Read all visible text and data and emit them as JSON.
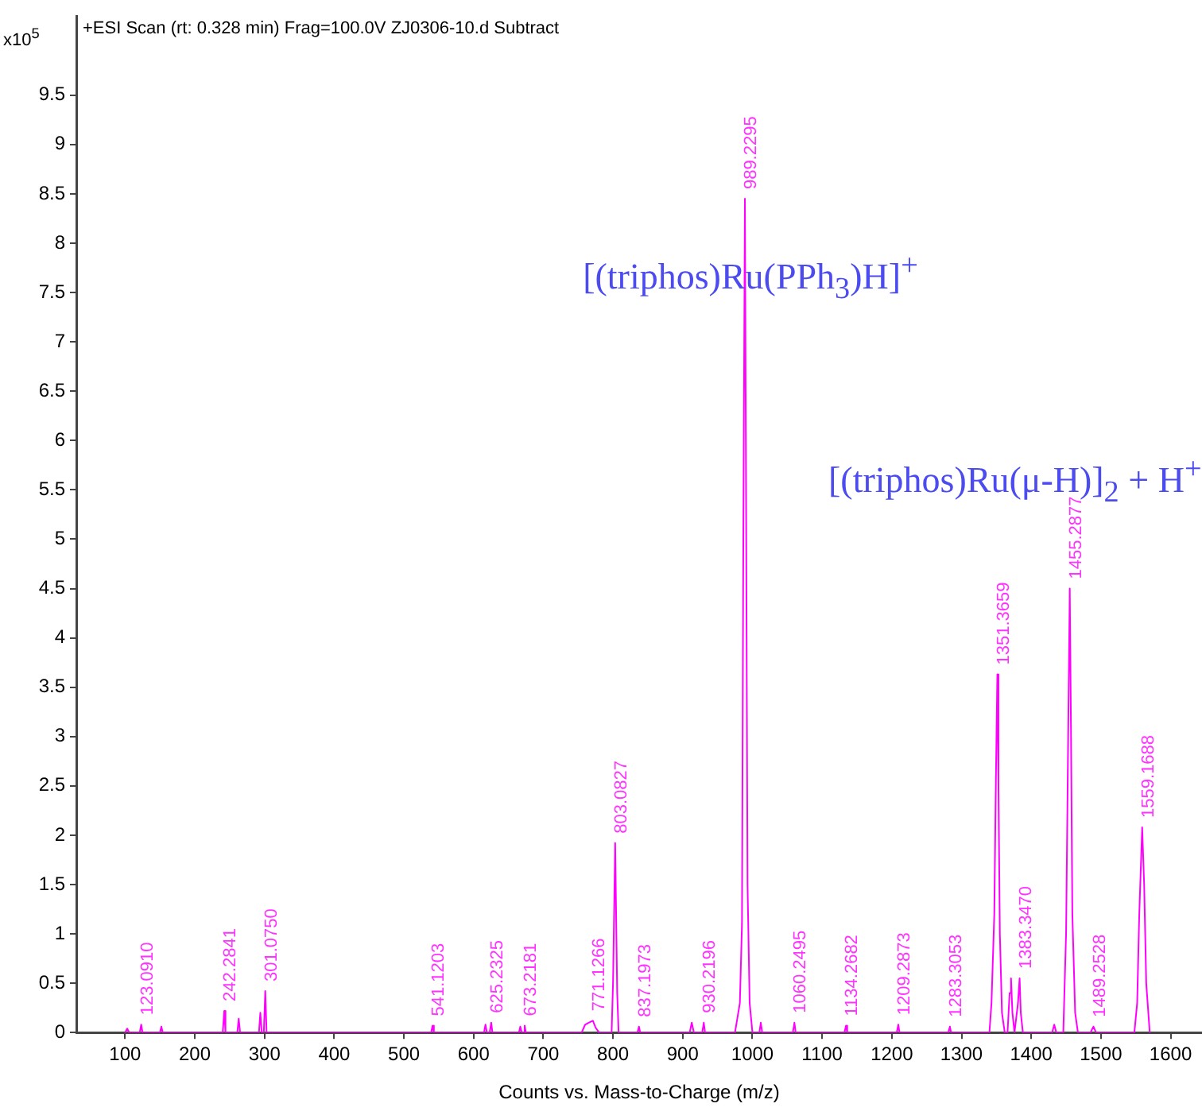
{
  "chart_data": {
    "type": "line",
    "title": "+ESI Scan (rt: 0.328 min) Frag=100.0V ZJ0306-10.d  Subtract",
    "xlabel": "Counts vs. Mass-to-Charge (m/z)",
    "ylabel": "x10$^{5}$",
    "x": [
      100,
      103,
      106,
      121,
      123.091,
      125,
      150,
      152,
      154,
      240,
      242.2841,
      244,
      261,
      263,
      265,
      292,
      294,
      296,
      299,
      301.075,
      303,
      539,
      541.1203,
      543,
      615,
      617,
      619,
      623,
      625.2325,
      627,
      665,
      667,
      669,
      671,
      673.2181,
      675,
      755,
      760,
      765,
      771.1266,
      775,
      780,
      798,
      800,
      803.0827,
      806,
      808,
      835,
      837.1973,
      839,
      910,
      913,
      916,
      928,
      930.2196,
      932,
      975,
      982,
      985,
      987,
      989.2295,
      991,
      993,
      996,
      1000,
      1010,
      1012,
      1014,
      1058,
      1060.2495,
      1062,
      1132,
      1134.2682,
      1136,
      1207,
      1209.2873,
      1211,
      1281,
      1283.3053,
      1285,
      1340,
      1343,
      1347,
      1349,
      1351.3659,
      1353,
      1355,
      1358,
      1362,
      1366,
      1369,
      1371,
      1373,
      1376,
      1381,
      1383.347,
      1385,
      1388,
      1430,
      1433,
      1436,
      1446,
      1450,
      1453,
      1455.2877,
      1457,
      1459,
      1463,
      1467,
      1485,
      1489.2528,
      1493,
      1548,
      1552,
      1555,
      1559.1688,
      1562,
      1565,
      1570
    ],
    "series": [
      {
        "color": "#ff00ff",
        "values": [
          0,
          0.04,
          0,
          0,
          0.08,
          0,
          0,
          0.06,
          0,
          0,
          0.22,
          0,
          0,
          0.14,
          0,
          0,
          0.2,
          0,
          0,
          0.42,
          0,
          0,
          0.07,
          0,
          0,
          0.08,
          0,
          0,
          0.1,
          0,
          0,
          0.06,
          0,
          0,
          0.07,
          0,
          0,
          0.08,
          0.1,
          0.12,
          0.05,
          0,
          0,
          0.5,
          1.92,
          0.4,
          0,
          0,
          0.06,
          0,
          0,
          0.1,
          0,
          0,
          0.1,
          0,
          0,
          0.3,
          1.1,
          5.1,
          8.45,
          5.2,
          1.5,
          0.3,
          0,
          0,
          0.1,
          0,
          0,
          0.1,
          0,
          0,
          0.07,
          0,
          0,
          0.08,
          0,
          0,
          0.06,
          0,
          0,
          0.3,
          1.2,
          2.4,
          3.63,
          2.5,
          1,
          0.2,
          0,
          0,
          0.4,
          0.55,
          0.2,
          0,
          0.3,
          0.55,
          0.2,
          0,
          0,
          0.08,
          0,
          0,
          1,
          3,
          4.5,
          3.1,
          1.2,
          0.2,
          0,
          0,
          0.06,
          0,
          0,
          0.3,
          1.2,
          2.08,
          1.5,
          0.5,
          0
        ]
      }
    ],
    "annotations": [
      "[(triphos)Ru(PPh$_{3}$)H]$^{+}$",
      "[(triphos)Ru(μ-H)]$_{2}$ + H$^{+}$",
      {
        "text": "123.0910",
        "x": 123.091,
        "y": 0.08
      },
      {
        "text": "242.2841",
        "x": 242.2841,
        "y": 0.22
      },
      {
        "text": "301.0750",
        "x": 301.075,
        "y": 0.42
      },
      {
        "text": "541.1203",
        "x": 541.1203,
        "y": 0.07
      },
      {
        "text": "625.2325",
        "x": 625.2325,
        "y": 0.1
      },
      {
        "text": "673.2181",
        "x": 673.2181,
        "y": 0.07
      },
      {
        "text": "771.1266",
        "x": 771.1266,
        "y": 0.12
      },
      {
        "text": "803.0827",
        "x": 803.0827,
        "y": 1.92
      },
      {
        "text": "837.1973",
        "x": 837.1973,
        "y": 0.06
      },
      {
        "text": "930.2196",
        "x": 930.2196,
        "y": 0.1
      },
      {
        "text": "989.2295",
        "x": 989.2295,
        "y": 8.45
      },
      {
        "text": "1060.2495",
        "x": 1060.2495,
        "y": 0.1
      },
      {
        "text": "1134.2682",
        "x": 1134.2682,
        "y": 0.07
      },
      {
        "text": "1209.2873",
        "x": 1209.2873,
        "y": 0.08
      },
      {
        "text": "1283.3053",
        "x": 1283.3053,
        "y": 0.06
      },
      {
        "text": "1351.3659",
        "x": 1351.3659,
        "y": 3.63
      },
      {
        "text": "1383.3470",
        "x": 1383.347,
        "y": 0.55
      },
      {
        "text": "1455.2877",
        "x": 1455.2877,
        "y": 4.5
      },
      {
        "text": "1489.2528",
        "x": 1489.2528,
        "y": 0.06
      },
      {
        "text": "1559.1688",
        "x": 1559.1688,
        "y": 2.08
      }
    ],
    "xlim": [
      30,
      1645
    ],
    "xticks": [
      100,
      200,
      300,
      400,
      500,
      600,
      700,
      800,
      900,
      1000,
      1100,
      1200,
      1300,
      1400,
      1500,
      1600
    ],
    "ylim": [
      0,
      10.3
    ],
    "yticks": [
      0,
      0.5,
      1,
      1.5,
      2,
      2.5,
      3,
      3.5,
      4,
      4.5,
      5,
      5.5,
      6,
      6.5,
      7,
      7.5,
      8,
      8.5,
      9,
      9.5
    ],
    "grid": false,
    "legend": false,
    "marker": "none",
    "line_style": "solid"
  }
}
